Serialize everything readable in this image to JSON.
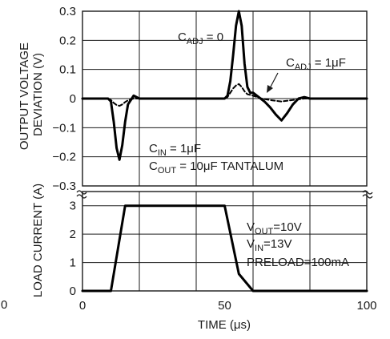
{
  "chart_data": [
    {
      "type": "line",
      "ylabel": [
        "OUTPUT VOLTAGE",
        "DEVIATION (V)"
      ],
      "x_range": [
        0,
        100
      ],
      "ylim": [
        -0.3,
        0.3
      ],
      "yticks": [
        "0.3",
        "0.2",
        "0.1",
        "0",
        "−0.1",
        "−0.2",
        "−0.3"
      ],
      "ytick_values": [
        0.3,
        0.2,
        0.1,
        0,
        -0.1,
        -0.2,
        -0.3
      ],
      "grid": true,
      "series": [
        {
          "name": "CADJ = 0",
          "style": "solid",
          "x": [
            0,
            9,
            10,
            11,
            12,
            13,
            14,
            15,
            16,
            18,
            20,
            22,
            25,
            30,
            40,
            50,
            51,
            52,
            53,
            54,
            55,
            56,
            57,
            58,
            59,
            60,
            62,
            64,
            66,
            68,
            70,
            72,
            74,
            76,
            78,
            80,
            85,
            90,
            100
          ],
          "y": [
            0,
            0,
            -0.01,
            -0.08,
            -0.17,
            -0.21,
            -0.16,
            -0.08,
            -0.02,
            0.01,
            0.0,
            0,
            0,
            0,
            0,
            0,
            0.01,
            0.06,
            0.15,
            0.25,
            0.3,
            0.25,
            0.12,
            0.04,
            0.02,
            0.02,
            0.005,
            -0.01,
            -0.03,
            -0.055,
            -0.075,
            -0.05,
            -0.02,
            0.0,
            0.005,
            0.0,
            0,
            0,
            0
          ]
        },
        {
          "name": "CADJ = 1μF",
          "style": "dashed",
          "x": [
            0,
            9,
            10,
            11,
            12,
            13,
            14,
            15,
            16,
            18,
            20,
            25,
            40,
            50,
            51,
            52,
            53,
            54,
            55,
            56,
            57,
            58,
            60,
            63,
            66,
            70,
            74,
            78,
            82,
            90,
            100
          ],
          "y": [
            0,
            0,
            -0.005,
            -0.015,
            -0.022,
            -0.025,
            -0.02,
            -0.012,
            -0.006,
            0.0,
            0,
            0,
            0,
            0,
            0.005,
            0.02,
            0.035,
            0.045,
            0.05,
            0.04,
            0.025,
            0.015,
            0.01,
            0.0,
            -0.005,
            -0.01,
            -0.005,
            0.0,
            0,
            0,
            0
          ]
        }
      ],
      "annotations": [
        {
          "main": "C",
          "sub": "ADJ",
          "rest": " = 0"
        },
        {
          "main": "C",
          "sub": "ADJ",
          "rest": " = 1μF"
        },
        {
          "main": "C",
          "sub": "IN",
          "rest": " = 1μF"
        },
        {
          "main": "C",
          "sub": "OUT",
          "rest": " = 10μF TANTALUM"
        }
      ]
    },
    {
      "type": "line",
      "xlabel": "TIME (μs)",
      "ylabel": "LOAD CURRENT (A)",
      "xlim": [
        0,
        100
      ],
      "xticks": [
        "0",
        "50",
        "100"
      ],
      "xtick_values": [
        0,
        50,
        100
      ],
      "ylim": [
        0,
        3.5
      ],
      "yticks": [
        "3",
        "2",
        "1",
        "0"
      ],
      "ytick_values": [
        3,
        2,
        1,
        0
      ],
      "grid": true,
      "series": [
        {
          "style": "solid",
          "x": [
            0,
            10,
            15,
            50,
            55,
            60,
            100
          ],
          "y": [
            0,
            0,
            3,
            3,
            0.6,
            0,
            0
          ]
        }
      ],
      "annotations": [
        {
          "main": "V",
          "sub": "OUT",
          "rest": "=10V"
        },
        {
          "main": "V",
          "sub": "IN",
          "rest": "=13V"
        },
        {
          "main": "PRELOAD=100mA",
          "sub": "",
          "rest": ""
        }
      ]
    }
  ],
  "stray_label": "0"
}
